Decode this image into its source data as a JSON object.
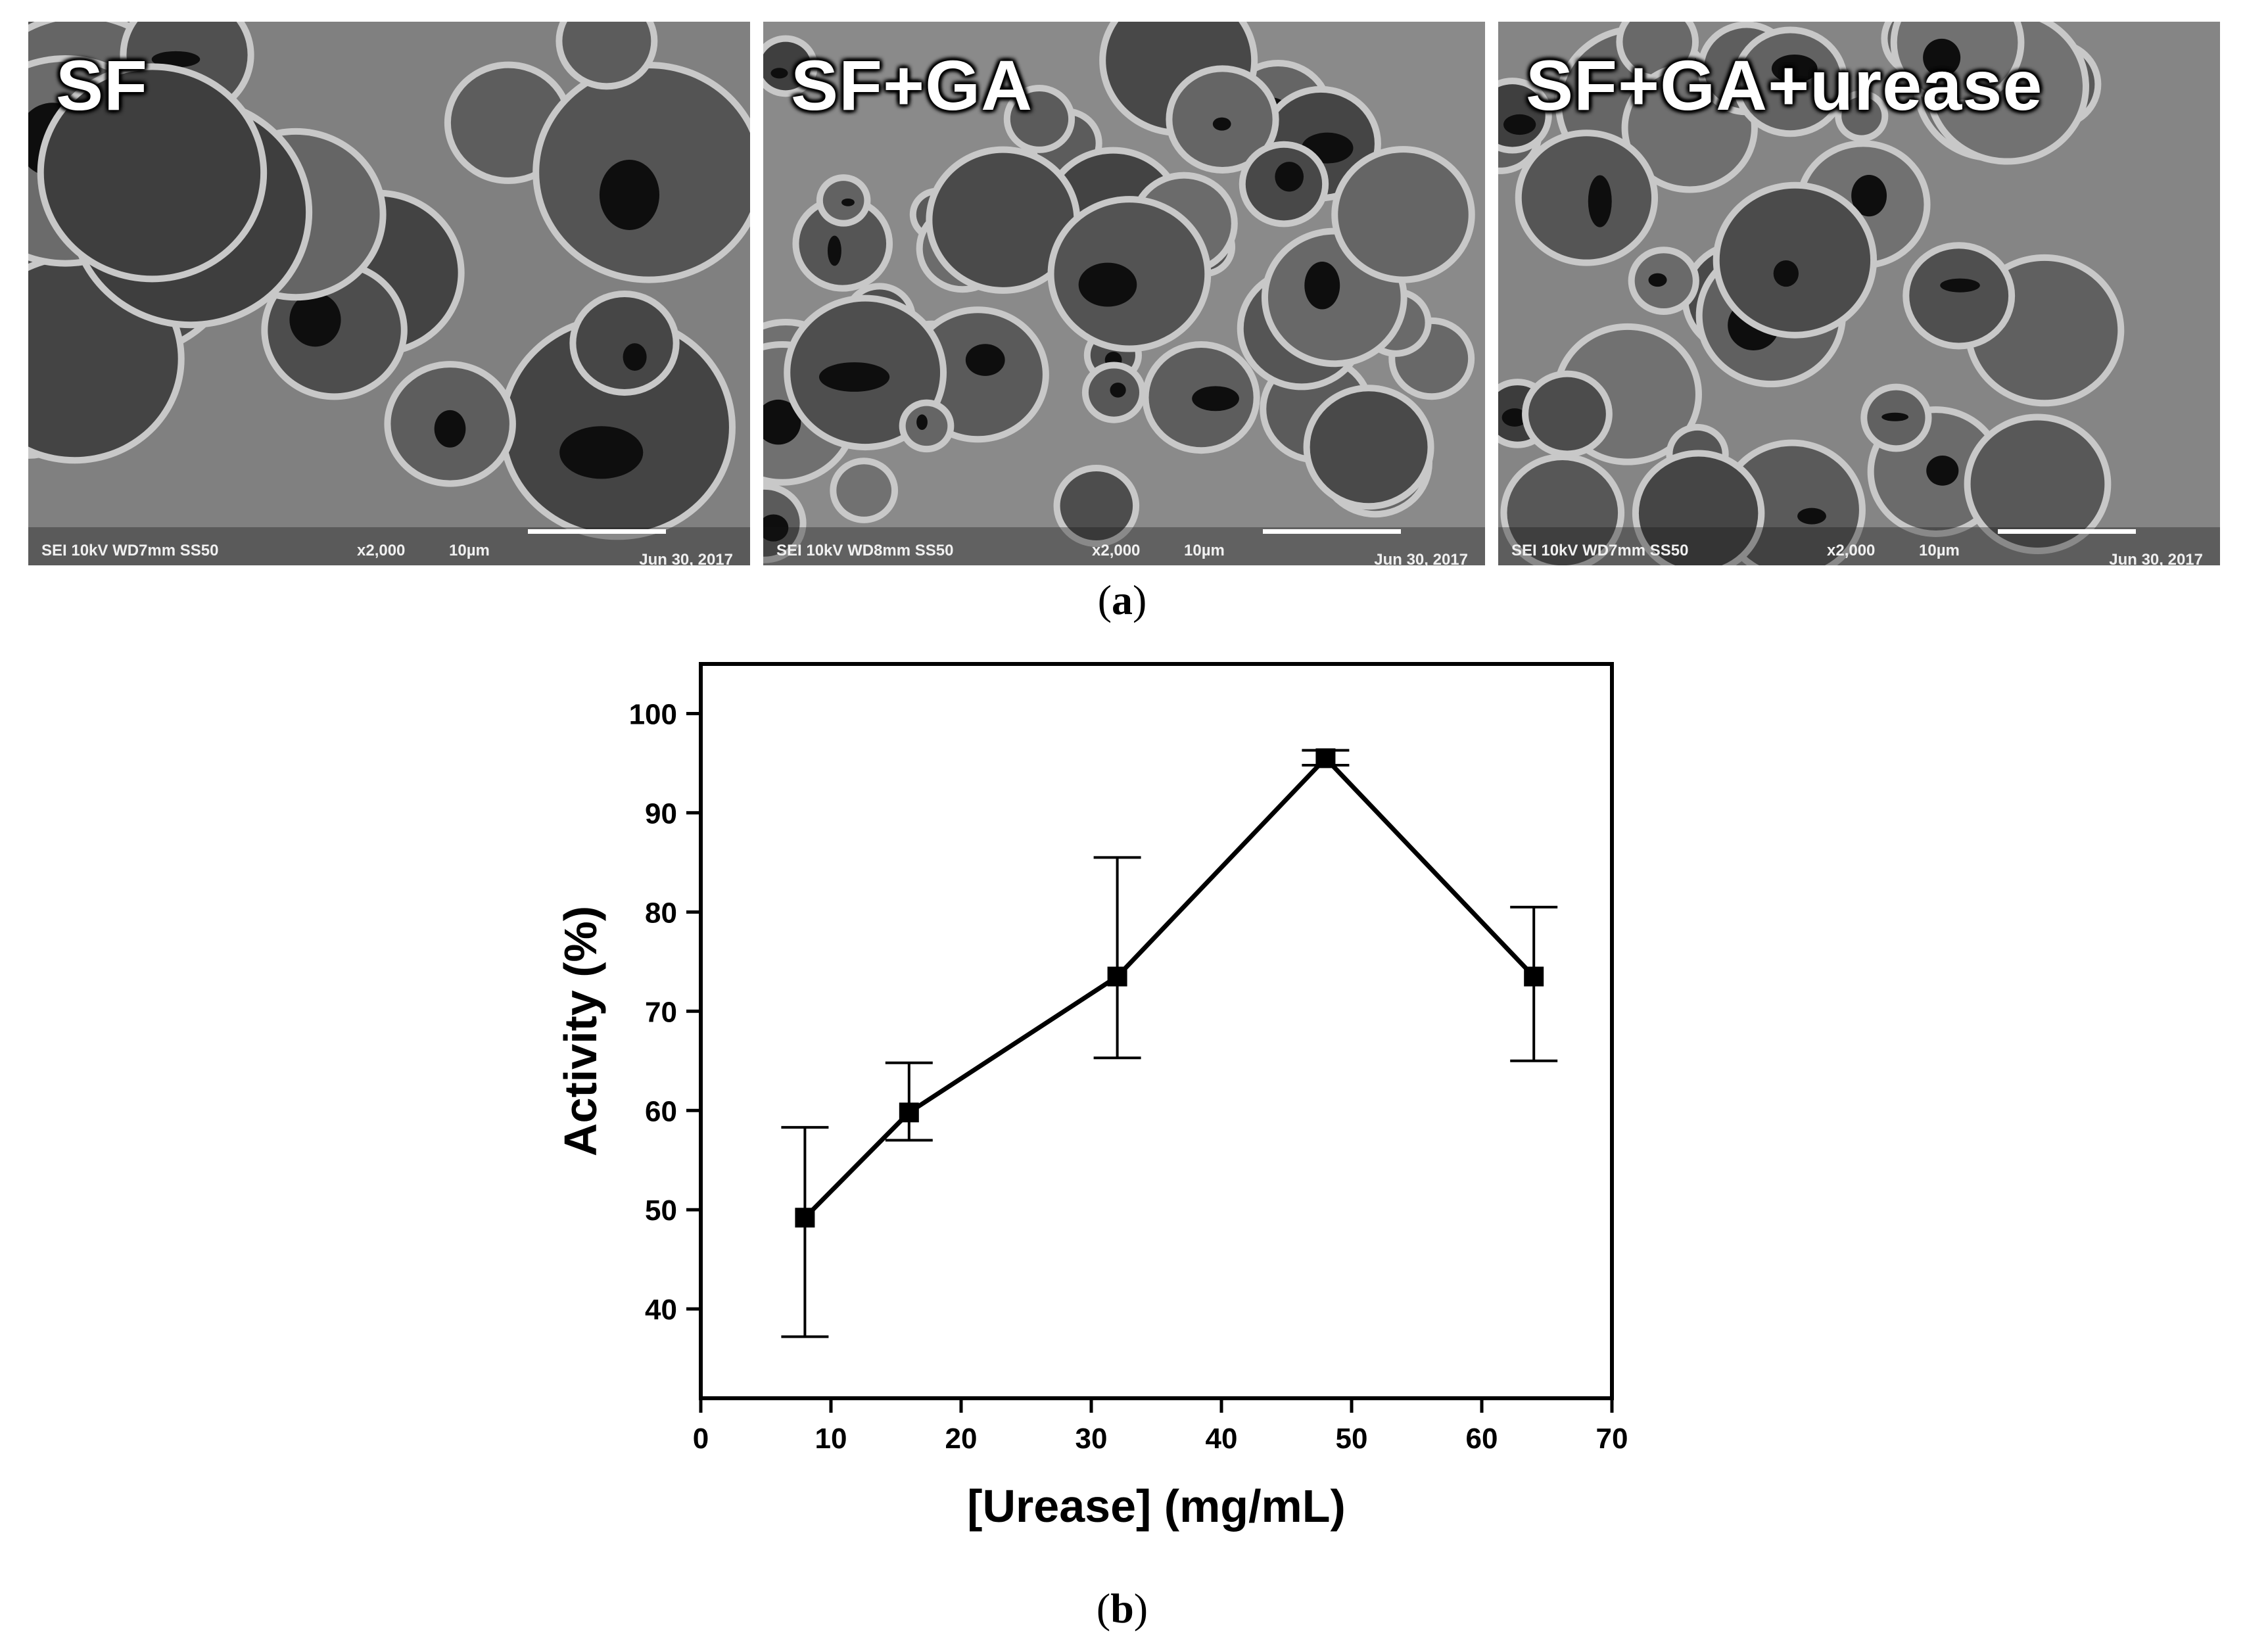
{
  "panel_a": {
    "caption_letter": "a",
    "micrographs": [
      {
        "label": "SF",
        "meta": "SEI   10kV   WD7mm   SS50",
        "magnification": "x2,000",
        "scale": "10µm",
        "date": "Jun 30, 2017"
      },
      {
        "label": "SF+GA",
        "meta": "SEI   10kV   WD8mm   SS50",
        "magnification": "x2,000",
        "scale": "10µm",
        "date": "Jun 30, 2017"
      },
      {
        "label": "SF+GA+urease",
        "meta": "SEI   10kV   WD7mm   SS50",
        "magnification": "x2,000",
        "scale": "10µm",
        "date": "Jun 30, 2017"
      }
    ]
  },
  "panel_b": {
    "caption_letter": "b"
  },
  "chart_data": {
    "type": "line",
    "title": "",
    "xlabel": "[Urease] (mg/mL)",
    "ylabel": "Activity (%)",
    "xlim": [
      0,
      70
    ],
    "ylim": [
      31,
      105
    ],
    "xticks": [
      0,
      10,
      20,
      30,
      40,
      50,
      60,
      70
    ],
    "yticks": [
      40,
      50,
      60,
      70,
      80,
      90,
      100
    ],
    "grid": false,
    "series": [
      {
        "x": [
          8,
          16,
          32,
          48,
          64
        ],
        "y": [
          49.2,
          59.8,
          73.5,
          95.5,
          73.5
        ],
        "error_low": [
          37.2,
          57.0,
          65.3,
          94.8,
          65.0
        ],
        "error_high": [
          58.3,
          64.8,
          85.5,
          96.3,
          80.5
        ],
        "marker": "square",
        "color": "#000000"
      }
    ]
  }
}
